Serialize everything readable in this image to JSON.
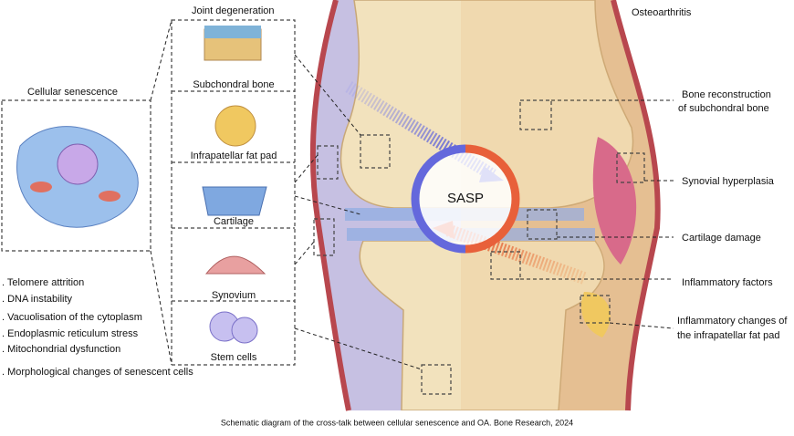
{
  "header": {
    "joint_degeneration": "Joint degeneration",
    "osteoarthritis": "Osteoarthritis",
    "cellular_senescence": "Cellular senescence"
  },
  "panels": [
    "Subchondral bone",
    "Infrapatellar fat pad",
    "Cartilage",
    "Synovium",
    "Stem cells"
  ],
  "features": [
    ". Telomere attrition",
    ". DNA instability",
    ". Vacuolisation of the cytoplasm",
    ". Endoplasmic reticulum stress",
    ". Mitochondrial dysfunction",
    ". Morphological changes of senescent cells"
  ],
  "center": "SASP",
  "annotations": [
    [
      "Bone reconstruction",
      "of subchondral bone"
    ],
    [
      "Synovial hyperplasia"
    ],
    [
      "Cartilage damage"
    ],
    [
      "Inflammatory factors"
    ],
    [
      "Inflammatory changes of",
      "the infrapatellar fat pad"
    ]
  ],
  "caption": "Schematic diagram of the cross-talk between cellular senescence and OA. Bone Research, 2024"
}
